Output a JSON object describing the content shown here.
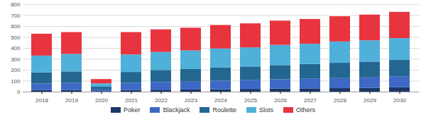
{
  "chart_data": {
    "type": "bar",
    "stacked": true,
    "grid": true,
    "legend": "bottom",
    "categories": [
      "2018",
      "2019",
      "2020",
      "2021",
      "2022",
      "2023",
      "2024",
      "2025",
      "2026",
      "2027",
      "2028",
      "2029",
      "2030"
    ],
    "series": [
      {
        "name": "Poker",
        "color": "#1b3768",
        "values": [
          15,
          15,
          5,
          15,
          18,
          20,
          22,
          25,
          28,
          30,
          32,
          35,
          40
        ]
      },
      {
        "name": "Blackjack",
        "color": "#3d68c6",
        "values": [
          60,
          65,
          15,
          65,
          70,
          72,
          78,
          80,
          85,
          88,
          92,
          95,
          100
        ]
      },
      {
        "name": "Roulette",
        "color": "#236791",
        "values": [
          100,
          105,
          25,
          100,
          110,
          115,
          120,
          125,
          130,
          135,
          140,
          145,
          150
        ]
      },
      {
        "name": "Slots",
        "color": "#4fb1da",
        "values": [
          155,
          160,
          30,
          160,
          165,
          170,
          175,
          175,
          185,
          185,
          195,
          195,
          200
        ]
      },
      {
        "name": "Others",
        "color": "#e8343f",
        "values": [
          200,
          200,
          40,
          205,
          207,
          208,
          215,
          220,
          222,
          227,
          231,
          235,
          240
        ]
      }
    ],
    "ylim": [
      0,
      800
    ],
    "yticks": [
      0,
      100,
      200,
      300,
      400,
      500,
      600,
      700,
      800
    ]
  }
}
